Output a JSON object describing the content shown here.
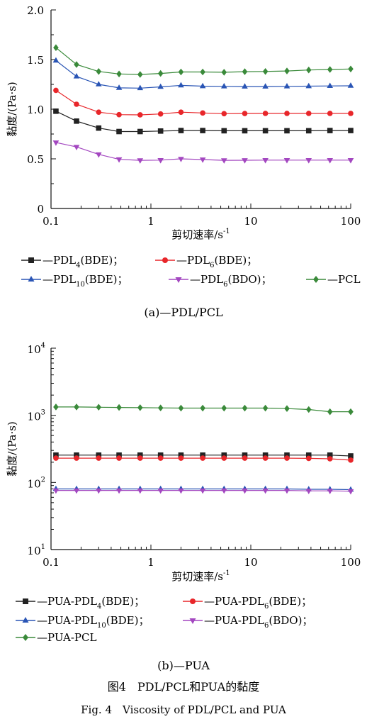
{
  "chart_data": [
    {
      "type": "line",
      "caption": "(a)—PDL/PCL",
      "xlabel": "剪切速率/s",
      "xlabel_sup": "-1",
      "ylabel": "黏度/(Pa·s)",
      "x_scale": "log",
      "y_scale": "linear",
      "xlim": [
        0.1,
        100
      ],
      "ylim": [
        0,
        2.0
      ],
      "grid": false,
      "legend_position": "below",
      "x_ticks": [
        {
          "v": 0.1,
          "label": "0.1"
        },
        {
          "v": 1,
          "label": "1"
        },
        {
          "v": 10,
          "label": "10"
        },
        {
          "v": 100,
          "label": "100"
        }
      ],
      "y_ticks": [
        {
          "v": 0,
          "label": "0"
        },
        {
          "v": 0.5,
          "label": "0.5"
        },
        {
          "v": 1.0,
          "label": "1.0"
        },
        {
          "v": 1.5,
          "label": "1.5"
        },
        {
          "v": 2.0,
          "label": "2.0"
        }
      ],
      "x": [
        0.112,
        0.18,
        0.3,
        0.48,
        0.78,
        1.25,
        2.0,
        3.3,
        5.4,
        8.7,
        14,
        23,
        38,
        62,
        100
      ],
      "series": [
        {
          "legend_prefix": "—PDL",
          "legend_sub": "4",
          "legend_suffix": "(BDE)；",
          "color": "#222222",
          "marker": "square",
          "values": [
            0.98,
            0.88,
            0.81,
            0.775,
            0.775,
            0.78,
            0.785,
            0.785,
            0.783,
            0.783,
            0.783,
            0.783,
            0.783,
            0.785,
            0.785
          ]
        },
        {
          "legend_prefix": "—PDL",
          "legend_sub": "6",
          "legend_suffix": "(BDE)；",
          "color": "#e8262a",
          "marker": "circle",
          "values": [
            1.19,
            1.05,
            0.97,
            0.945,
            0.943,
            0.952,
            0.97,
            0.962,
            0.955,
            0.957,
            0.958,
            0.958,
            0.958,
            0.958,
            0.958
          ]
        },
        {
          "legend_prefix": "—PDL",
          "legend_sub": "10",
          "legend_suffix": "(BDE)；",
          "color": "#2a55b5",
          "marker": "triangle-up",
          "values": [
            1.49,
            1.33,
            1.25,
            1.215,
            1.212,
            1.225,
            1.24,
            1.232,
            1.23,
            1.228,
            1.228,
            1.23,
            1.232,
            1.234,
            1.236
          ]
        },
        {
          "legend_prefix": "—PDL",
          "legend_sub": "6",
          "legend_suffix": "(BDO)；",
          "color": "#a347c0",
          "marker": "triangle-down",
          "values": [
            0.665,
            0.62,
            0.545,
            0.495,
            0.485,
            0.487,
            0.5,
            0.493,
            0.485,
            0.486,
            0.487,
            0.487,
            0.487,
            0.487,
            0.487
          ]
        },
        {
          "legend_prefix": "—PCL",
          "legend_sub": "",
          "legend_suffix": "",
          "color": "#3a8a3a",
          "marker": "diamond",
          "values": [
            1.62,
            1.45,
            1.38,
            1.355,
            1.35,
            1.36,
            1.375,
            1.375,
            1.372,
            1.378,
            1.38,
            1.385,
            1.395,
            1.4,
            1.405
          ]
        }
      ]
    },
    {
      "type": "line",
      "caption": "(b)—PUA",
      "xlabel": "剪切速率/s",
      "xlabel_sup": "-1",
      "ylabel": "黏度/(Pa·s)",
      "x_scale": "log",
      "y_scale": "log",
      "xlim": [
        0.1,
        100
      ],
      "ylim": [
        10,
        10000
      ],
      "grid": false,
      "legend_position": "below",
      "x_ticks": [
        {
          "v": 0.1,
          "label": "0.1"
        },
        {
          "v": 1,
          "label": "1"
        },
        {
          "v": 10,
          "label": "10"
        },
        {
          "v": 100,
          "label": "100"
        }
      ],
      "y_ticks": [
        {
          "v": 10,
          "base": "10",
          "exp": "1"
        },
        {
          "v": 100,
          "base": "10",
          "exp": "2"
        },
        {
          "v": 1000,
          "base": "10",
          "exp": "3"
        },
        {
          "v": 10000,
          "base": "10",
          "exp": "4"
        }
      ],
      "x": [
        0.112,
        0.18,
        0.3,
        0.48,
        0.78,
        1.25,
        2.0,
        3.3,
        5.4,
        8.7,
        14,
        23,
        38,
        62,
        100
      ],
      "series": [
        {
          "legend_prefix": "—PUA-PDL",
          "legend_sub": "4",
          "legend_suffix": "(BDE)；",
          "color": "#222222",
          "marker": "square",
          "values": [
            255,
            255,
            255,
            255,
            255,
            255,
            255,
            255,
            255,
            255,
            255,
            255,
            255,
            255,
            248
          ]
        },
        {
          "legend_prefix": "—PUA-PDL",
          "legend_sub": "6",
          "legend_suffix": "(BDE)；",
          "color": "#e8262a",
          "marker": "circle",
          "values": [
            230,
            230,
            230,
            230,
            230,
            230,
            230,
            230,
            230,
            230,
            230,
            230,
            228,
            225,
            215
          ]
        },
        {
          "legend_prefix": "—PUA-PDL",
          "legend_sub": "10",
          "legend_suffix": "(BDE)；",
          "color": "#2a55b5",
          "marker": "triangle-up",
          "values": [
            80,
            80,
            80,
            80,
            80,
            80,
            80,
            80,
            80,
            80,
            80,
            80,
            79,
            79,
            78
          ]
        },
        {
          "legend_prefix": "—PUA-PDL",
          "legend_sub": "6",
          "legend_suffix": "(BDO)；",
          "color": "#a347c0",
          "marker": "triangle-down",
          "values": [
            76,
            76,
            76,
            76,
            76,
            76,
            76,
            76,
            76,
            76,
            76,
            76,
            75,
            75,
            74
          ]
        },
        {
          "legend_prefix": "—PUA-PCL",
          "legend_sub": "",
          "legend_suffix": "",
          "color": "#3a8a3a",
          "marker": "diamond",
          "values": [
            1330,
            1330,
            1320,
            1310,
            1300,
            1290,
            1280,
            1280,
            1280,
            1280,
            1280,
            1260,
            1220,
            1130,
            1130
          ]
        }
      ]
    }
  ],
  "figure_caption": {
    "cn": "图4　PDL/PCL和PUA的黏度",
    "en": "Fig. 4　Viscosity of PDL/PCL and PUA"
  }
}
